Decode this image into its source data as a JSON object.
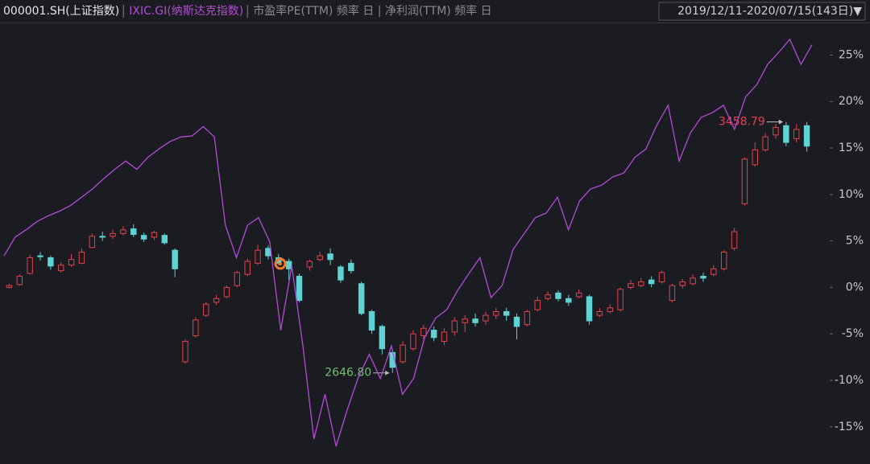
{
  "chart_data": {
    "type": "candlestick",
    "date_range": "2019/12/11-2020/07/15(143日)▼",
    "indicators": "市盈率PE(TTM) 频率 日 | 净利润(TTM) 频率 日",
    "ylim": [
      -19,
      28.5
    ],
    "yticks": [
      {
        "value": 25,
        "label": "25%"
      },
      {
        "value": 20,
        "label": "20%"
      },
      {
        "value": 15,
        "label": "15%"
      },
      {
        "value": 10,
        "label": "10%"
      },
      {
        "value": 5,
        "label": "5%"
      },
      {
        "value": 0,
        "label": "0%"
      },
      {
        "value": -5,
        "label": "-5%"
      },
      {
        "value": -10,
        "label": "-10%"
      },
      {
        "value": -15,
        "label": "-15%"
      }
    ],
    "series": [
      {
        "name": "000001.SH(上证指数)",
        "type": "candlestick",
        "up_color": "#e0434e",
        "down_color": "#5fd3d3",
        "values": [
          [
            0,
            0.2,
            0.4,
            -0.1
          ],
          [
            0.3,
            1.2,
            1.4,
            0.2
          ],
          [
            1.5,
            3.2,
            3.5,
            1.4
          ],
          [
            3.4,
            3.3,
            3.8,
            2.9
          ],
          [
            3.2,
            2.3,
            3.4,
            1.9
          ],
          [
            1.8,
            2.4,
            2.7,
            1.6
          ],
          [
            2.4,
            3.0,
            3.6,
            2.2
          ],
          [
            2.6,
            3.8,
            4.2,
            2.5
          ],
          [
            4.3,
            5.5,
            5.8,
            4.2
          ],
          [
            5.5,
            5.4,
            6.0,
            5.0
          ],
          [
            5.5,
            5.8,
            6.2,
            5.2
          ],
          [
            5.8,
            6.2,
            6.6,
            5.6
          ],
          [
            6.3,
            5.7,
            6.8,
            5.4
          ],
          [
            5.6,
            5.2,
            5.9,
            4.9
          ],
          [
            5.4,
            5.9,
            6.1,
            5.1
          ],
          [
            5.6,
            4.8,
            5.8,
            4.6
          ],
          [
            4.0,
            2.0,
            4.2,
            1.1
          ],
          [
            -8.0,
            -5.8,
            -5.6,
            -8.2
          ],
          [
            -5.2,
            -3.5,
            -3.2,
            -5.4
          ],
          [
            -3.0,
            -1.8,
            -1.6,
            -3.2
          ],
          [
            -1.6,
            -1.2,
            -0.8,
            -1.9
          ],
          [
            -1.0,
            0.0,
            0.2,
            -1.2
          ],
          [
            0.2,
            1.6,
            1.8,
            0.0
          ],
          [
            1.4,
            2.8,
            3.1,
            1.2
          ],
          [
            2.6,
            4.0,
            4.6,
            2.4
          ],
          [
            4.2,
            3.4,
            4.5,
            3.0
          ],
          [
            3.2,
            2.6,
            3.6,
            2.4
          ],
          [
            2.8,
            2.0,
            3.1,
            0.8
          ],
          [
            1.2,
            -1.4,
            1.5,
            -1.6
          ],
          [
            2.2,
            2.8,
            3.0,
            1.8
          ],
          [
            3.0,
            3.4,
            3.8,
            2.8
          ],
          [
            3.6,
            3.0,
            4.2,
            2.4
          ],
          [
            2.2,
            0.8,
            2.4,
            0.5
          ],
          [
            2.6,
            1.8,
            3.0,
            1.5
          ],
          [
            0.4,
            -2.8,
            0.6,
            -3.0
          ],
          [
            -2.6,
            -4.6,
            -2.4,
            -5.0
          ],
          [
            -4.2,
            -6.6,
            -4.0,
            -7.2
          ],
          [
            -7.0,
            -8.6,
            -6.8,
            -9.2
          ],
          [
            -8.0,
            -6.2,
            -5.8,
            -8.2
          ],
          [
            -6.6,
            -5.0,
            -4.6,
            -6.8
          ],
          [
            -5.2,
            -4.4,
            -4.0,
            -5.6
          ],
          [
            -4.6,
            -5.4,
            -4.2,
            -5.8
          ],
          [
            -5.8,
            -4.8,
            -4.4,
            -6.2
          ],
          [
            -4.8,
            -3.6,
            -3.2,
            -5.2
          ],
          [
            -3.8,
            -3.4,
            -3.0,
            -4.8
          ],
          [
            -3.4,
            -3.8,
            -2.8,
            -4.2
          ],
          [
            -3.6,
            -3.0,
            -2.6,
            -4.0
          ],
          [
            -3.0,
            -2.6,
            -2.2,
            -3.4
          ],
          [
            -2.6,
            -3.0,
            -2.2,
            -3.6
          ],
          [
            -3.2,
            -4.2,
            -2.8,
            -5.6
          ],
          [
            -4.0,
            -2.6,
            -2.4,
            -4.2
          ],
          [
            -2.4,
            -1.4,
            -1.0,
            -2.6
          ],
          [
            -1.2,
            -0.8,
            -0.4,
            -1.4
          ],
          [
            -0.6,
            -1.2,
            -0.3,
            -1.5
          ],
          [
            -1.2,
            -1.6,
            -0.8,
            -2.0
          ],
          [
            -1.0,
            -0.6,
            -0.2,
            -1.2
          ],
          [
            -1.0,
            -3.6,
            -0.8,
            -4.0
          ],
          [
            -3.0,
            -2.6,
            -2.2,
            -3.2
          ],
          [
            -2.6,
            -2.2,
            -1.8,
            -2.8
          ],
          [
            -2.4,
            -0.2,
            0.0,
            -2.6
          ],
          [
            0.0,
            0.4,
            0.8,
            -0.2
          ],
          [
            0.2,
            0.6,
            1.0,
            0.0
          ],
          [
            0.8,
            0.4,
            1.2,
            0.0
          ],
          [
            0.6,
            1.6,
            1.8,
            0.4
          ],
          [
            -1.4,
            0.2,
            0.4,
            -1.6
          ],
          [
            0.2,
            0.6,
            0.9,
            -0.1
          ],
          [
            0.4,
            1.0,
            1.4,
            0.2
          ],
          [
            1.2,
            1.0,
            1.6,
            0.6
          ],
          [
            1.4,
            2.0,
            2.4,
            1.2
          ],
          [
            2.0,
            3.8,
            4.0,
            1.8
          ],
          [
            4.2,
            6.0,
            6.4,
            4.0
          ],
          [
            9.0,
            13.8,
            14.0,
            8.8
          ],
          [
            13.2,
            14.8,
            15.6,
            13.0
          ],
          [
            14.8,
            16.2,
            16.6,
            14.6
          ],
          [
            16.4,
            17.2,
            17.6,
            16.0
          ],
          [
            17.4,
            15.6,
            17.8,
            15.2
          ],
          [
            16.0,
            17.0,
            17.6,
            15.6
          ],
          [
            17.4,
            15.2,
            17.8,
            14.6
          ]
        ]
      },
      {
        "name": "IXIC.GI(纳斯达克指数)",
        "type": "line",
        "color": "#b44bd6",
        "values": [
          3.4,
          5.4,
          6.2,
          7.1,
          7.7,
          8.2,
          8.8,
          9.7,
          10.6,
          11.7,
          12.7,
          13.6,
          12.7,
          14.0,
          14.9,
          15.7,
          16.2,
          16.3,
          17.3,
          16.2,
          6.7,
          3.2,
          6.7,
          7.5,
          4.9,
          -4.6,
          2.3,
          -6.3,
          -16.3,
          -11.5,
          -17.1,
          -13.2,
          -9.7,
          -7.2,
          -9.8,
          -6.3,
          -11.5,
          -9.8,
          -5.4,
          -3.3,
          -2.4,
          -0.3,
          1.5,
          3.2,
          -1.1,
          0.2,
          4.1,
          5.8,
          7.5,
          8.0,
          9.7,
          6.2,
          9.3,
          10.6,
          11.0,
          11.9,
          12.3,
          14.0,
          14.9,
          17.5,
          19.6,
          13.6,
          16.6,
          18.3,
          18.8,
          19.6,
          17.0,
          20.5,
          21.8,
          24.0,
          25.3,
          26.7,
          24.0,
          26.1
        ]
      }
    ],
    "annotations": [
      {
        "label": "3458.79",
        "at": "high",
        "color": "#e0434e"
      },
      {
        "label": "2646.80",
        "at": "low",
        "color": "#6fc06f"
      }
    ]
  }
}
